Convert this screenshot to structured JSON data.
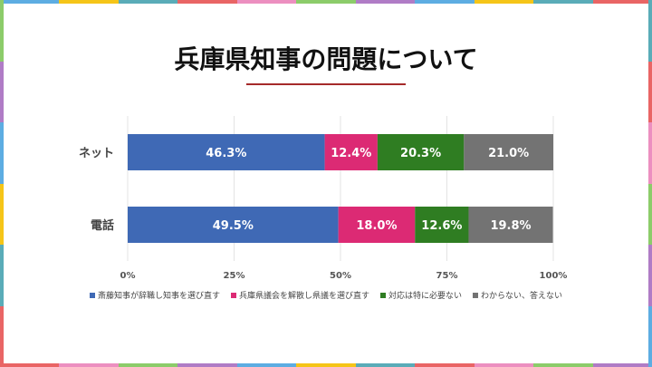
{
  "title": "兵庫県知事の問題について",
  "border_colors": [
    "#5dade2",
    "#f5c518",
    "#5aacb8",
    "#e96565",
    "#ec8fc0",
    "#8ccc6a",
    "#b07cc6"
  ],
  "chart_data": {
    "type": "bar",
    "orientation": "horizontal-stacked-100",
    "categories": [
      "ネット",
      "電話"
    ],
    "series": [
      {
        "name": "斎藤知事が辞職し知事を選び直す",
        "color": "#3f69b5",
        "values": [
          46.3,
          49.5
        ],
        "labels": [
          "46.3%",
          "49.5%"
        ]
      },
      {
        "name": "兵庫県議会を解散し県議を選び直す",
        "color": "#dc2a74",
        "values": [
          12.4,
          18.0
        ],
        "labels": [
          "12.4%",
          "18.0%"
        ]
      },
      {
        "name": "対応は特に必要ない",
        "color": "#2f7d22",
        "values": [
          20.3,
          12.6
        ],
        "labels": [
          "20.3%",
          "12.6%"
        ]
      },
      {
        "name": "わからない、答えない",
        "color": "#737373",
        "values": [
          21.0,
          19.8
        ],
        "labels": [
          "21.0%",
          "19.8%"
        ]
      }
    ],
    "xticks": [
      0,
      25,
      50,
      75,
      100
    ],
    "xtick_labels": [
      "0%",
      "25%",
      "50%",
      "75%",
      "100%"
    ],
    "xlim": [
      0,
      100
    ],
    "grid": true,
    "legend": "bottom"
  }
}
